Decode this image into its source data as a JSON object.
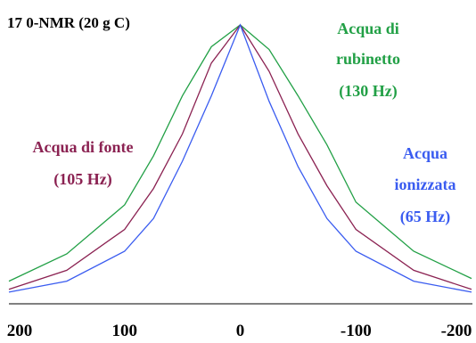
{
  "chart_data": {
    "type": "line",
    "title": "17 0-NMR (20 g C)",
    "xlabel": "",
    "ylabel": "",
    "xlim": [
      200,
      -200
    ],
    "ylim": [
      0,
      1
    ],
    "x_ticks": [
      "200",
      "100",
      "0",
      "-100",
      "-200"
    ],
    "x_tick_values": [
      200,
      100,
      0,
      -100,
      -200
    ],
    "grid": false,
    "series": [
      {
        "name": "Acqua di rubinetto",
        "width_label": "(130 Hz)",
        "color": "#22a046",
        "x": [
          200,
          150,
          100,
          75,
          50,
          25,
          0,
          -25,
          -50,
          -75,
          -100,
          -150,
          -200
        ],
        "y": [
          0.06,
          0.16,
          0.34,
          0.52,
          0.74,
          0.92,
          1.0,
          0.91,
          0.74,
          0.56,
          0.35,
          0.17,
          0.07
        ]
      },
      {
        "name": "Acqua di fonte",
        "width_label": "(105 Hz)",
        "color": "#8b2252",
        "x": [
          200,
          150,
          100,
          75,
          50,
          25,
          0,
          -25,
          -50,
          -75,
          -100,
          -150,
          -200
        ],
        "y": [
          0.03,
          0.1,
          0.25,
          0.4,
          0.6,
          0.86,
          1.0,
          0.83,
          0.6,
          0.41,
          0.25,
          0.1,
          0.03
        ]
      },
      {
        "name": "Acqua ionizzata",
        "width_label": "(65 Hz)",
        "color": "#3a5cf0",
        "x": [
          200,
          150,
          100,
          75,
          50,
          25,
          0,
          -25,
          -50,
          -75,
          -100,
          -150,
          -200
        ],
        "y": [
          0.02,
          0.06,
          0.17,
          0.29,
          0.5,
          0.74,
          1.0,
          0.72,
          0.48,
          0.29,
          0.17,
          0.06,
          0.02
        ]
      }
    ]
  }
}
